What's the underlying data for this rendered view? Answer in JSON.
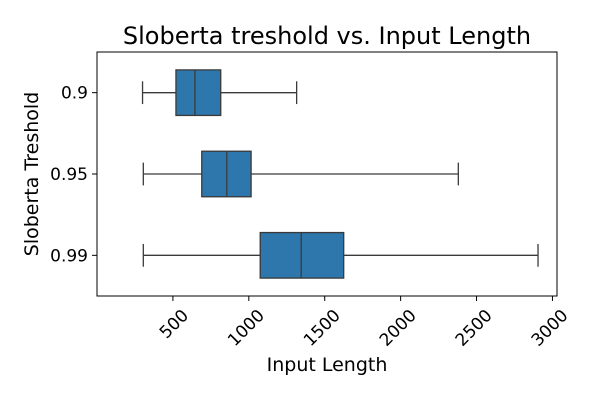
{
  "chart_data": {
    "type": "box",
    "orientation": "horizontal",
    "title": "Sloberta treshold vs. Input Length",
    "xlabel": "Input Length",
    "ylabel": "Sloberta Treshold",
    "xlim": [
      0,
      3030
    ],
    "x_ticks": [
      500,
      1000,
      1500,
      2000,
      2500,
      3000
    ],
    "x_tick_labels": [
      "500",
      "1000",
      "1500",
      "2000",
      "2500",
      "3000"
    ],
    "x_tick_rotation": 45,
    "categories": [
      "0.9",
      "0.95",
      "0.99"
    ],
    "grid": false,
    "legend": "none",
    "box_color": "#2d77ad",
    "line_color": "#3a3a3a",
    "boxes": [
      {
        "category": "0.9",
        "whisker_low": 300,
        "q1": 520,
        "median": 645,
        "q3": 815,
        "whisker_high": 1315
      },
      {
        "category": "0.95",
        "whisker_low": 305,
        "q1": 690,
        "median": 855,
        "q3": 1015,
        "whisker_high": 2380
      },
      {
        "category": "0.99",
        "whisker_low": 305,
        "q1": 1075,
        "median": 1345,
        "q3": 1625,
        "whisker_high": 2905
      }
    ]
  }
}
